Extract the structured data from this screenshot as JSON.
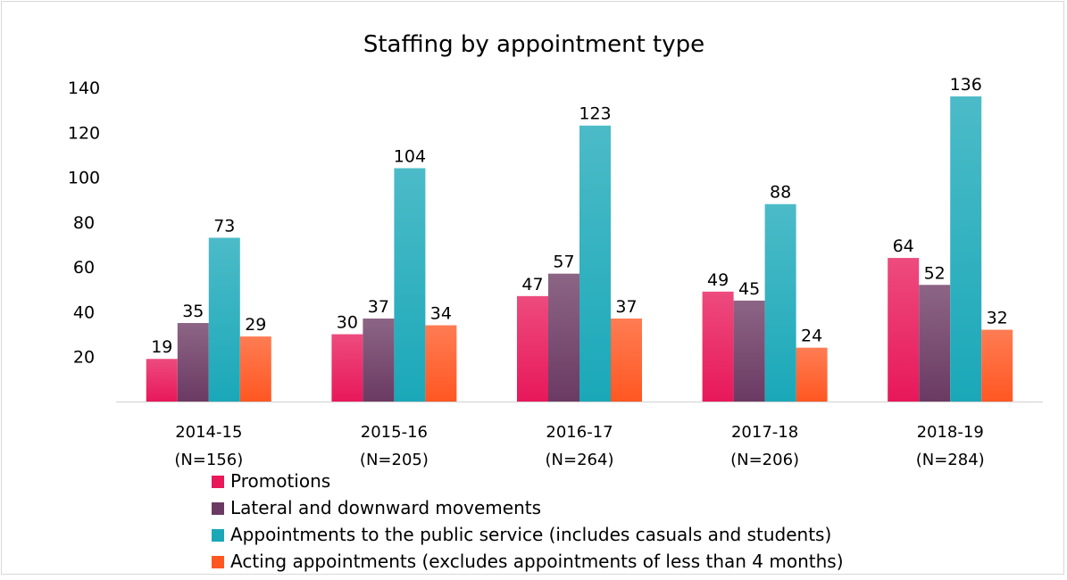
{
  "chart_data": {
    "type": "bar",
    "title": "Staffing by appointment type",
    "xlabel": "",
    "ylabel": "",
    "ylim": [
      0,
      140
    ],
    "yticks": [
      20,
      40,
      60,
      80,
      100,
      120,
      140
    ],
    "grid": false,
    "legend_position": "bottom-left",
    "categories": [
      {
        "year": "2014-15",
        "n": "(N=156)"
      },
      {
        "year": "2015-16",
        "n": "(N=205)"
      },
      {
        "year": "2016-17",
        "n": "(N=264)"
      },
      {
        "year": "2017-18",
        "n": "(N=206)"
      },
      {
        "year": "2018-19",
        "n": "(N=284)"
      }
    ],
    "series": [
      {
        "name": "Promotions",
        "color": "#e8185a",
        "values": [
          19,
          30,
          47,
          49,
          64
        ]
      },
      {
        "name": "Lateral and downward movements",
        "color": "#6b3a63",
        "values": [
          35,
          37,
          57,
          45,
          52
        ]
      },
      {
        "name": "Appointments to the public service  (includes casuals and students)",
        "color": "#1aa8b8",
        "values": [
          73,
          104,
          123,
          88,
          136
        ]
      },
      {
        "name": "Acting appointments (excludes appointments of less than 4 months)",
        "color": "#ff5722",
        "values": [
          29,
          34,
          37,
          24,
          32
        ]
      }
    ]
  }
}
